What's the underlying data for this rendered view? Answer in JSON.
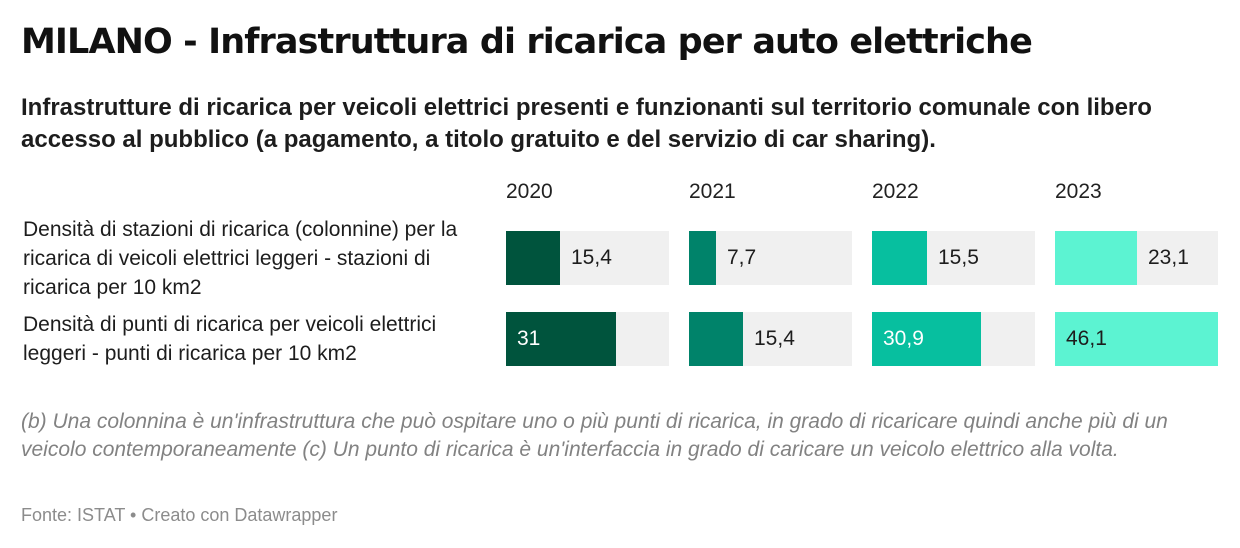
{
  "title": "MILANO - Infrastruttura di ricarica per auto elettriche",
  "subtitle": "Infrastrutture di ricarica per veicoli elettrici presenti e funzionanti sul territorio comunale con libero accesso al pubblico (a pagamento, a titolo gratuito e del servizio di car sharing).",
  "note": "(b) Una colonnina è un'infrastruttura che può ospitare uno o più punti di ricarica, in grado di ricaricare quindi anche più di un veicolo contemporaneamente (c) Un punto di ricarica è un'interfaccia in grado di caricare un veicolo elettrico alla volta.",
  "source": "Fonte: ISTAT • Creato con Datawrapper",
  "colors": {
    "2020": "#00543d",
    "2021": "#00836a",
    "2022": "#07bf9f",
    "2023": "#5cf3d2",
    "track": "#f0f0f0"
  },
  "chart_data": {
    "type": "bar",
    "orientation": "horizontal",
    "layout": "small-multiples",
    "columns": [
      "2020",
      "2021",
      "2022",
      "2023"
    ],
    "rows": [
      {
        "label": "Densità di stazioni di ricarica (colonnine) per la ricarica di veicoli elettrici leggeri - stazioni di ricarica per 10 km2",
        "values": [
          15.4,
          7.7,
          15.5,
          23.1
        ],
        "display": [
          "15,4",
          "7,7",
          "15,5",
          "23,1"
        ]
      },
      {
        "label": "Densità di punti di ricarica per veicoli elettrici leggeri - punti di ricarica per 10 km2",
        "values": [
          31,
          15.4,
          30.9,
          46.1
        ],
        "display": [
          "31",
          "15,4",
          "30,9",
          "46,1"
        ]
      }
    ],
    "xlim": [
      0,
      46.1
    ],
    "grid": false,
    "legend": "none"
  }
}
